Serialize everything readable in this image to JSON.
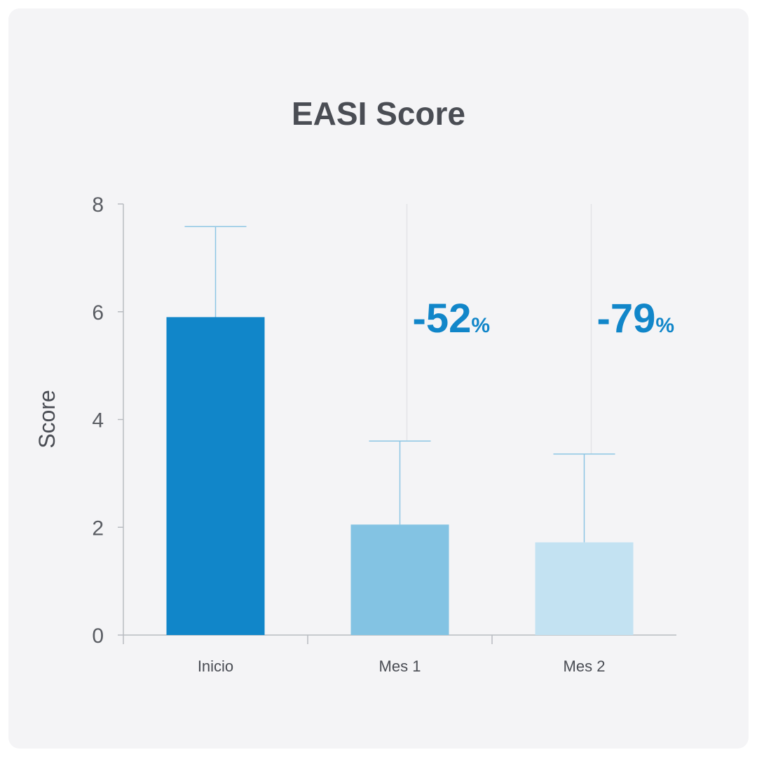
{
  "chart_data": {
    "type": "bar",
    "title": "EASI Score",
    "xlabel": "",
    "ylabel": "Score",
    "ylim": [
      0,
      8
    ],
    "yticks": [
      "0",
      "2",
      "4",
      "6",
      "8"
    ],
    "categories": [
      "Inicio",
      "Mes 1",
      "Mes 2"
    ],
    "values": [
      5.9,
      2.05,
      1.72
    ],
    "error_upper": [
      7.58,
      3.6,
      3.36
    ],
    "colors": [
      "#1186c9",
      "#83c3e3",
      "#c3e2f2"
    ],
    "annotations": [
      {
        "category": "Mes 1",
        "value": "-52",
        "suffix": "%"
      },
      {
        "category": "Mes 2",
        "value": "-79",
        "suffix": "%"
      }
    ],
    "grid": false,
    "legend": "none"
  }
}
